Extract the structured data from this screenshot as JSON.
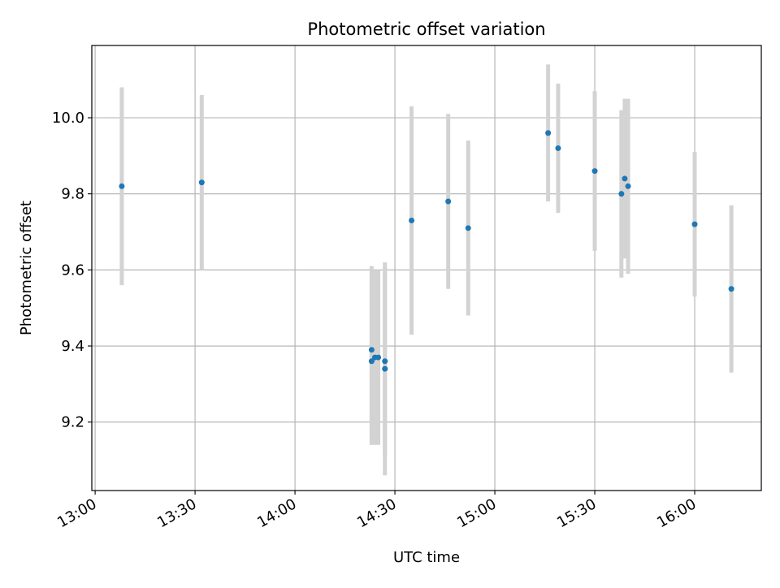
{
  "chart_data": {
    "type": "scatter",
    "title": "Photometric offset variation",
    "xlabel": "UTC time",
    "ylabel": "Photometric offset",
    "x_ticks": [
      "13:00",
      "13:30",
      "14:00",
      "14:30",
      "15:00",
      "15:30",
      "16:00"
    ],
    "y_ticks": [
      "9.2",
      "9.4",
      "9.6",
      "9.8",
      "10.0"
    ],
    "xlim": [
      "12:59",
      "16:20"
    ],
    "ylim": [
      9.02,
      10.19
    ],
    "grid": true,
    "legend": false,
    "series": [
      {
        "marker_color": "#1f77b4",
        "errorbar_color": "#d3d3d3",
        "points": [
          {
            "x": "13:08",
            "y": 9.82,
            "yerr": 0.26
          },
          {
            "x": "13:32",
            "y": 9.83,
            "yerr": 0.23
          },
          {
            "x": "14:23",
            "y": 9.36,
            "yerr": 0.22
          },
          {
            "x": "14:23",
            "y": 9.39,
            "yerr": 0.22
          },
          {
            "x": "14:24",
            "y": 9.37,
            "yerr": 0.23
          },
          {
            "x": "14:25",
            "y": 9.37,
            "yerr": 0.23
          },
          {
            "x": "14:27",
            "y": 9.36,
            "yerr": 0.25
          },
          {
            "x": "14:27",
            "y": 9.34,
            "yerr": 0.28
          },
          {
            "x": "14:35",
            "y": 9.73,
            "yerr": 0.3
          },
          {
            "x": "14:46",
            "y": 9.78,
            "yerr": 0.23
          },
          {
            "x": "14:52",
            "y": 9.71,
            "yerr": 0.23
          },
          {
            "x": "15:16",
            "y": 9.96,
            "yerr": 0.18
          },
          {
            "x": "15:19",
            "y": 9.92,
            "yerr": 0.17
          },
          {
            "x": "15:30",
            "y": 9.86,
            "yerr": 0.21
          },
          {
            "x": "15:38",
            "y": 9.8,
            "yerr": 0.22
          },
          {
            "x": "15:39",
            "y": 9.84,
            "yerr": 0.21
          },
          {
            "x": "15:40",
            "y": 9.82,
            "yerr": 0.23
          },
          {
            "x": "16:00",
            "y": 9.72,
            "yerr": 0.19
          },
          {
            "x": "16:11",
            "y": 9.55,
            "yerr": 0.22
          }
        ]
      }
    ]
  }
}
